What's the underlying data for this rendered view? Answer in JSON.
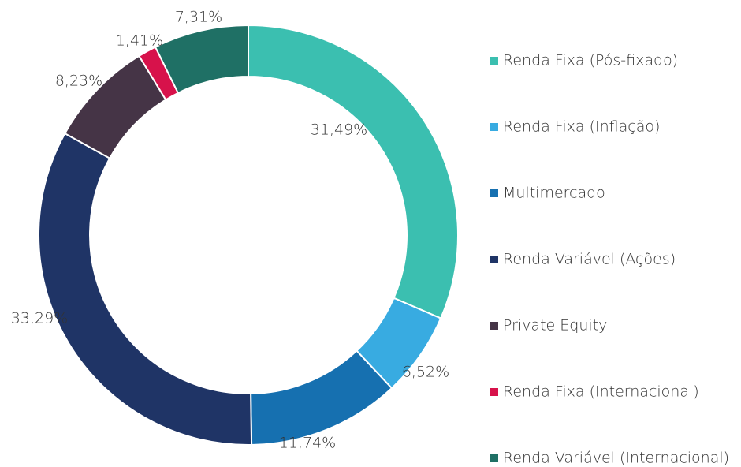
{
  "chart_data": {
    "type": "donut",
    "categories": [
      "Renda Fixa (Pós-fixado)",
      "Renda Fixa (Inflação)",
      "Multimercado",
      "Renda Variável (Ações)",
      "Private Equity",
      "Renda Fixa (Internacional)",
      "Renda Variável (Internacional)"
    ],
    "values": [
      31.49,
      6.52,
      11.74,
      33.29,
      8.23,
      1.41,
      7.31
    ],
    "value_labels": [
      "31,49%",
      "6,52%",
      "11,74%",
      "33,29%",
      "8,23%",
      "1,41%",
      "7,31%"
    ],
    "colors": [
      "#3bbfb0",
      "#38abe1",
      "#1670b0",
      "#1f3466",
      "#453446",
      "#d7124b",
      "#1f7065"
    ],
    "legend": "right"
  }
}
